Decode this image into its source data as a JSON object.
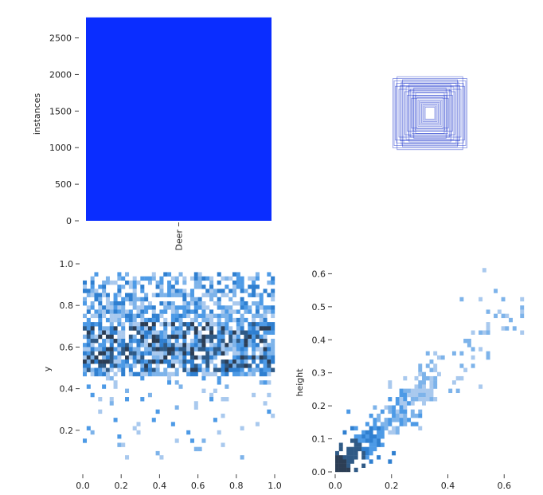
{
  "chart_data": [
    {
      "type": "bar",
      "categories": [
        "Deer"
      ],
      "values": [
        2780
      ],
      "ylabel": "instances",
      "xlabel": "",
      "ylim": [
        0,
        2800
      ],
      "yticks": [
        0,
        500,
        1000,
        1500,
        2000,
        2500
      ],
      "ytick_labels": [
        "0",
        "500",
        "1000",
        "1500",
        "2000",
        "2500"
      ],
      "bar_color": "#0a2dff",
      "grid": false
    },
    {
      "type": "scatter",
      "title": "",
      "description_kind": "overlaid bounding boxes centered at (0.5, 0.5)",
      "boxes": [
        {
          "w": 0.62,
          "h": 0.58
        },
        {
          "w": 0.55,
          "h": 0.61
        },
        {
          "w": 0.48,
          "h": 0.52
        },
        {
          "w": 0.58,
          "h": 0.45
        },
        {
          "w": 0.44,
          "h": 0.5
        },
        {
          "w": 0.52,
          "h": 0.4
        },
        {
          "w": 0.4,
          "h": 0.44
        },
        {
          "w": 0.36,
          "h": 0.38
        },
        {
          "w": 0.46,
          "h": 0.56
        },
        {
          "w": 0.33,
          "h": 0.4
        },
        {
          "w": 0.3,
          "h": 0.34
        },
        {
          "w": 0.28,
          "h": 0.3
        },
        {
          "w": 0.25,
          "h": 0.28
        },
        {
          "w": 0.22,
          "h": 0.26
        },
        {
          "w": 0.2,
          "h": 0.22
        },
        {
          "w": 0.18,
          "h": 0.2
        },
        {
          "w": 0.16,
          "h": 0.18
        },
        {
          "w": 0.14,
          "h": 0.16
        },
        {
          "w": 0.12,
          "h": 0.14
        },
        {
          "w": 0.1,
          "h": 0.12
        },
        {
          "w": 0.08,
          "h": 0.1
        },
        {
          "w": 0.35,
          "h": 0.48
        },
        {
          "w": 0.42,
          "h": 0.36
        },
        {
          "w": 0.27,
          "h": 0.42
        },
        {
          "w": 0.5,
          "h": 0.46
        },
        {
          "w": 0.38,
          "h": 0.3
        },
        {
          "w": 0.24,
          "h": 0.34
        },
        {
          "w": 0.31,
          "h": 0.25
        },
        {
          "w": 0.56,
          "h": 0.5
        },
        {
          "w": 0.6,
          "h": 0.54
        }
      ],
      "line_color": "#1a33cc"
    },
    {
      "type": "heatmap",
      "xlabel": "",
      "ylabel": "y",
      "xlim": [
        0,
        1
      ],
      "ylim": [
        0,
        1
      ],
      "xticks": [
        0.0,
        0.2,
        0.4,
        0.6,
        0.8,
        1.0
      ],
      "xtick_labels": [
        "0.0",
        "0.2",
        "0.4",
        "0.6",
        "0.8",
        "1.0"
      ],
      "yticks": [
        0.2,
        0.4,
        0.6,
        0.8,
        1.0
      ],
      "ytick_labels": [
        "0.2",
        "0.4",
        "0.6",
        "0.8",
        "1.0"
      ],
      "bins": [
        50,
        50
      ],
      "distribution": "x uniform 0–1, y mostly 0.45–0.95 peaking near 0.58, sparse below 0.45"
    },
    {
      "type": "heatmap",
      "xlabel": "",
      "ylabel": "height",
      "xlim": [
        0,
        0.67
      ],
      "ylim": [
        0,
        0.63
      ],
      "xticks": [
        0.0,
        0.2,
        0.4,
        0.6
      ],
      "xtick_labels": [
        "0.0",
        "0.2",
        "0.4",
        "0.6"
      ],
      "yticks": [
        0.0,
        0.1,
        0.2,
        0.3,
        0.4,
        0.5,
        0.6
      ],
      "ytick_labels": [
        "0.0",
        "0.1",
        "0.2",
        "0.3",
        "0.4",
        "0.5",
        "0.6"
      ],
      "bins": [
        50,
        50
      ],
      "distribution": "width vs height, dense along diagonal from origin to ~(0.3,0.3), sparse tail to (0.64,0.45)"
    }
  ]
}
